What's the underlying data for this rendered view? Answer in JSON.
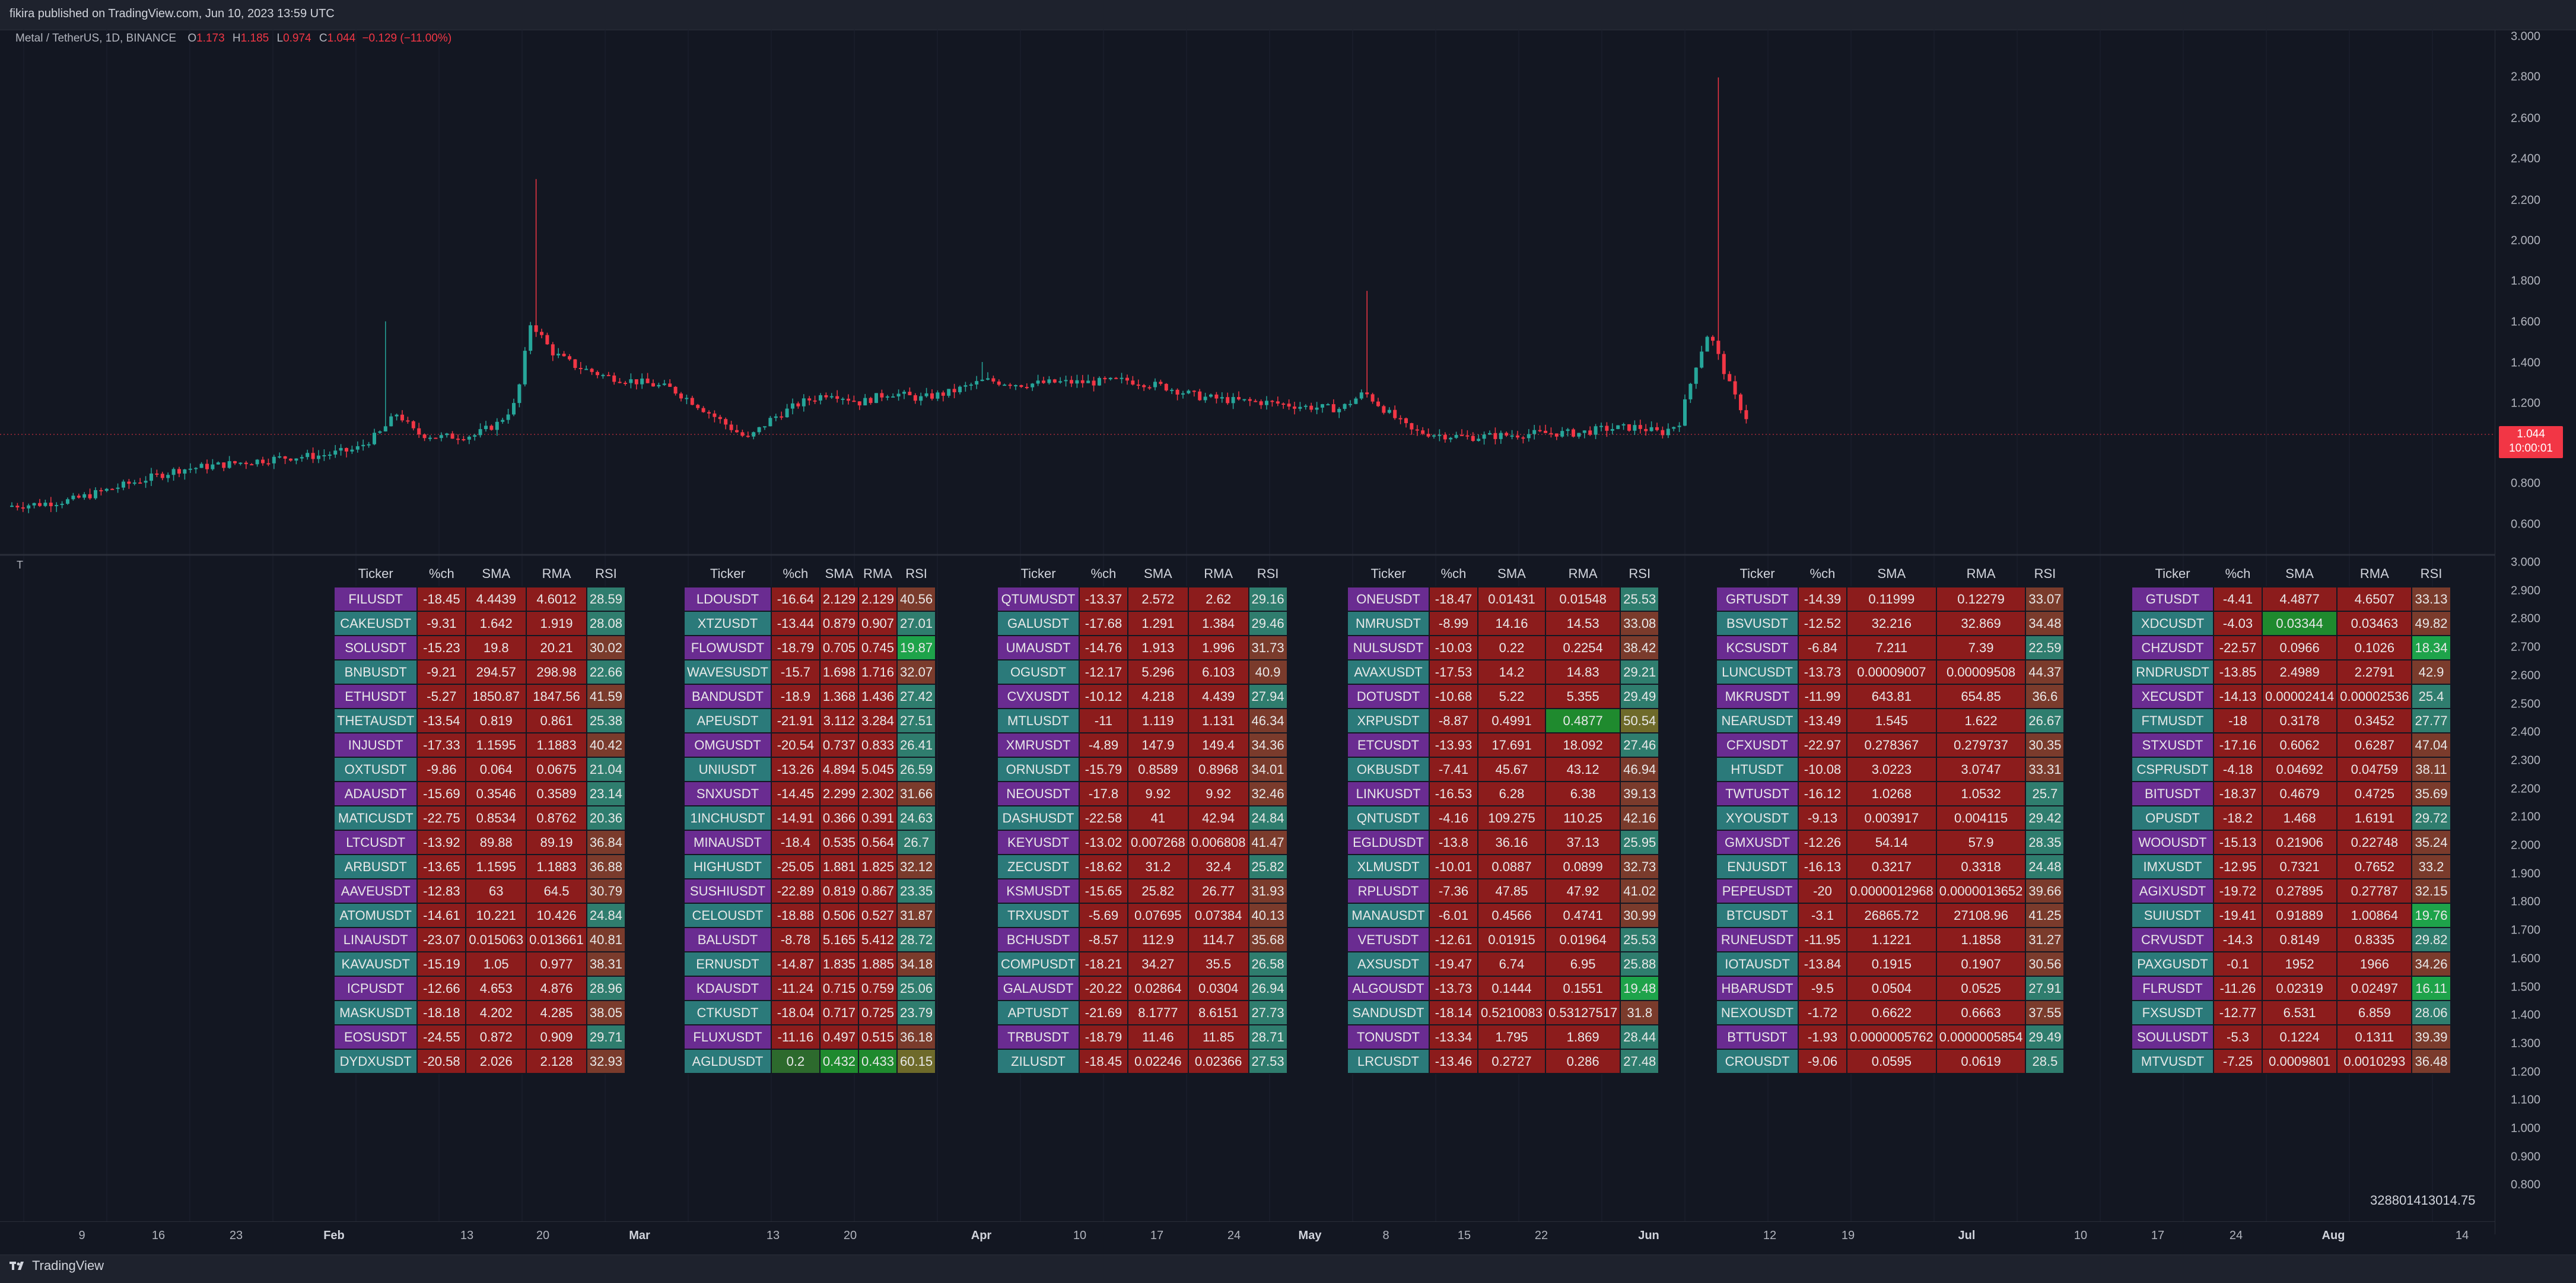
{
  "header": {
    "published": "fikira published on TradingView.com, Jun 10, 2023 13:59 UTC"
  },
  "legend": {
    "symbol": "Metal / TetherUS, 1D, BINANCE",
    "o_label": "O",
    "o": "1.173",
    "h_label": "H",
    "h": "1.185",
    "l_label": "L",
    "l": "0.974",
    "c_label": "C",
    "c": "1.044",
    "change": "−0.129 (−11.00%)"
  },
  "indicator_label": "T",
  "price_axis_main": [
    "3.000",
    "2.800",
    "2.600",
    "2.400",
    "2.200",
    "2.000",
    "1.800",
    "1.600",
    "1.400",
    "1.200",
    "0.800",
    "0.600"
  ],
  "price_axis_ind": [
    "3.000",
    "2.900",
    "2.800",
    "2.700",
    "2.600",
    "2.500",
    "2.400",
    "2.300",
    "2.200",
    "2.100",
    "2.000",
    "1.900",
    "1.800",
    "1.700",
    "1.600",
    "1.500",
    "1.400",
    "1.300",
    "1.200",
    "1.100",
    "1.000",
    "0.900",
    "0.800"
  ],
  "last_price": {
    "price": "1.044",
    "countdown": "10:00:01"
  },
  "time_axis": [
    {
      "label": "9",
      "bold": false
    },
    {
      "label": "16",
      "bold": false
    },
    {
      "label": "23",
      "bold": false
    },
    {
      "label": "Feb",
      "bold": true
    },
    {
      "label": "13",
      "bold": false
    },
    {
      "label": "20",
      "bold": false
    },
    {
      "label": "Mar",
      "bold": true
    },
    {
      "label": "13",
      "bold": false
    },
    {
      "label": "20",
      "bold": false
    },
    {
      "label": "Apr",
      "bold": true
    },
    {
      "label": "10",
      "bold": false
    },
    {
      "label": "17",
      "bold": false
    },
    {
      "label": "24",
      "bold": false
    },
    {
      "label": "May",
      "bold": true
    },
    {
      "label": "8",
      "bold": false
    },
    {
      "label": "15",
      "bold": false
    },
    {
      "label": "22",
      "bold": false
    },
    {
      "label": "Jun",
      "bold": true
    },
    {
      "label": "12",
      "bold": false
    },
    {
      "label": "19",
      "bold": false
    },
    {
      "label": "Jul",
      "bold": true
    },
    {
      "label": "10",
      "bold": false
    },
    {
      "label": "17",
      "bold": false
    },
    {
      "label": "24",
      "bold": false
    },
    {
      "label": "Aug",
      "bold": true
    },
    {
      "label": "14",
      "bold": false
    }
  ],
  "footer_number": "328801413014.75",
  "brand": "TradingView",
  "colors": {
    "up": "#26a69a",
    "down": "#f23645",
    "bg": "#131722"
  },
  "screener": {
    "headers": [
      "Ticker",
      "%ch",
      "SMA",
      "RMA",
      "RSI"
    ],
    "tables": [
      [
        [
          "FILUSDT",
          "-18.45",
          "4.4439",
          "4.6012",
          "28.59"
        ],
        [
          "CAKEUSDT",
          "-9.31",
          "1.642",
          "1.919",
          "28.08"
        ],
        [
          "SOLUSDT",
          "-15.23",
          "19.8",
          "20.21",
          "30.02"
        ],
        [
          "BNBUSDT",
          "-9.21",
          "294.57",
          "298.98",
          "22.66"
        ],
        [
          "ETHUSDT",
          "-5.27",
          "1850.87",
          "1847.56",
          "41.59"
        ],
        [
          "THETAUSDT",
          "-13.54",
          "0.819",
          "0.861",
          "25.38"
        ],
        [
          "INJUSDT",
          "-17.33",
          "1.1595",
          "1.1883",
          "40.42"
        ],
        [
          "OXTUSDT",
          "-9.86",
          "0.064",
          "0.0675",
          "21.04"
        ],
        [
          "ADAUSDT",
          "-15.69",
          "0.3546",
          "0.3589",
          "23.14"
        ],
        [
          "MATICUSDT",
          "-22.75",
          "0.8534",
          "0.8762",
          "20.36"
        ],
        [
          "LTCUSDT",
          "-13.92",
          "89.88",
          "89.19",
          "36.84"
        ],
        [
          "ARBUSDT",
          "-13.65",
          "1.1595",
          "1.1883",
          "36.88"
        ],
        [
          "AAVEUSDT",
          "-12.83",
          "63",
          "64.5",
          "30.79"
        ],
        [
          "ATOMUSDT",
          "-14.61",
          "10.221",
          "10.426",
          "24.84"
        ],
        [
          "LINAUSDT",
          "-23.07",
          "0.015063",
          "0.013661",
          "40.81"
        ],
        [
          "KAVAUSDT",
          "-15.19",
          "1.05",
          "0.977",
          "38.31"
        ],
        [
          "ICPUSDT",
          "-12.66",
          "4.653",
          "4.876",
          "28.96"
        ],
        [
          "MASKUSDT",
          "-18.18",
          "4.202",
          "4.285",
          "38.05"
        ],
        [
          "EOSUSDT",
          "-24.55",
          "0.872",
          "0.909",
          "29.71"
        ],
        [
          "DYDXUSDT",
          "-20.58",
          "2.026",
          "2.128",
          "32.93"
        ]
      ],
      [
        [
          "LDOUSDT",
          "-16.64",
          "2.129",
          "2.129",
          "40.56"
        ],
        [
          "XTZUSDT",
          "-13.44",
          "0.879",
          "0.907",
          "27.01"
        ],
        [
          "FLOWUSDT",
          "-18.79",
          "0.705",
          "0.745",
          "19.87"
        ],
        [
          "WAVESUSDT",
          "-15.7",
          "1.698",
          "1.716",
          "32.07"
        ],
        [
          "BANDUSDT",
          "-18.9",
          "1.368",
          "1.436",
          "27.42"
        ],
        [
          "APEUSDT",
          "-21.91",
          "3.112",
          "3.284",
          "27.51"
        ],
        [
          "OMGUSDT",
          "-20.54",
          "0.737",
          "0.833",
          "26.41"
        ],
        [
          "UNIUSDT",
          "-13.26",
          "4.894",
          "5.045",
          "26.59"
        ],
        [
          "SNXUSDT",
          "-14.45",
          "2.299",
          "2.302",
          "31.66"
        ],
        [
          "1INCHUSDT",
          "-14.91",
          "0.366",
          "0.391",
          "24.63"
        ],
        [
          "MINAUSDT",
          "-18.4",
          "0.535",
          "0.564",
          "26.7"
        ],
        [
          "HIGHUSDT",
          "-25.05",
          "1.881",
          "1.825",
          "32.12"
        ],
        [
          "SUSHIUSDT",
          "-22.89",
          "0.819",
          "0.867",
          "23.35"
        ],
        [
          "CELOUSDT",
          "-18.88",
          "0.506",
          "0.527",
          "31.87"
        ],
        [
          "BALUSDT",
          "-8.78",
          "5.165",
          "5.412",
          "28.72"
        ],
        [
          "ERNUSDT",
          "-14.87",
          "1.835",
          "1.885",
          "34.18"
        ],
        [
          "KDAUSDT",
          "-11.24",
          "0.715",
          "0.759",
          "25.06"
        ],
        [
          "CTKUSDT",
          "-18.04",
          "0.717",
          "0.725",
          "23.79"
        ],
        [
          "FLUXUSDT",
          "-11.16",
          "0.497",
          "0.515",
          "36.18"
        ],
        [
          "AGLDUSDT",
          "0.2",
          "0.432",
          "0.433",
          "60.15"
        ]
      ],
      [
        [
          "QTUMUSDT",
          "-13.37",
          "2.572",
          "2.62",
          "29.16"
        ],
        [
          "GALUSDT",
          "-17.68",
          "1.291",
          "1.384",
          "29.46"
        ],
        [
          "UMAUSDT",
          "-14.76",
          "1.913",
          "1.996",
          "31.73"
        ],
        [
          "OGUSDT",
          "-12.17",
          "5.296",
          "6.103",
          "40.9"
        ],
        [
          "CVXUSDT",
          "-10.12",
          "4.218",
          "4.439",
          "27.94"
        ],
        [
          "MTLUSDT",
          "-11",
          "1.119",
          "1.131",
          "46.34"
        ],
        [
          "XMRUSDT",
          "-4.89",
          "147.9",
          "149.4",
          "34.36"
        ],
        [
          "ORNUSDT",
          "-15.79",
          "0.8589",
          "0.8968",
          "34.01"
        ],
        [
          "NEOUSDT",
          "-17.8",
          "9.92",
          "9.92",
          "32.46"
        ],
        [
          "DASHUSDT",
          "-22.58",
          "41",
          "42.94",
          "24.84"
        ],
        [
          "KEYUSDT",
          "-13.02",
          "0.007268",
          "0.006808",
          "41.47"
        ],
        [
          "ZECUSDT",
          "-18.62",
          "31.2",
          "32.4",
          "25.82"
        ],
        [
          "KSMUSDT",
          "-15.65",
          "25.82",
          "26.77",
          "31.93"
        ],
        [
          "TRXUSDT",
          "-5.69",
          "0.07695",
          "0.07384",
          "40.13"
        ],
        [
          "BCHUSDT",
          "-8.57",
          "112.9",
          "114.7",
          "35.68"
        ],
        [
          "COMPUSDT",
          "-18.21",
          "34.27",
          "35.5",
          "26.58"
        ],
        [
          "GALAUSDT",
          "-20.22",
          "0.02864",
          "0.0304",
          "26.94"
        ],
        [
          "APTUSDT",
          "-21.69",
          "8.1777",
          "8.6151",
          "27.73"
        ],
        [
          "TRBUSDT",
          "-18.79",
          "11.46",
          "11.85",
          "28.71"
        ],
        [
          "ZILUSDT",
          "-18.45",
          "0.02246",
          "0.02366",
          "27.53"
        ]
      ],
      [
        [
          "ONEUSDT",
          "-18.47",
          "0.01431",
          "0.01548",
          "25.53"
        ],
        [
          "NMRUSDT",
          "-8.99",
          "14.16",
          "14.53",
          "33.08"
        ],
        [
          "NULSUSDT",
          "-10.03",
          "0.22",
          "0.2254",
          "38.42"
        ],
        [
          "AVAXUSDT",
          "-17.53",
          "14.2",
          "14.83",
          "29.21"
        ],
        [
          "DOTUSDT",
          "-10.68",
          "5.22",
          "5.355",
          "29.49"
        ],
        [
          "XRPUSDT",
          "-8.87",
          "0.4991",
          "0.4877",
          "50.54"
        ],
        [
          "ETCUSDT",
          "-13.93",
          "17.691",
          "18.092",
          "27.46"
        ],
        [
          "OKBUSDT",
          "-7.41",
          "45.67",
          "43.12",
          "46.94"
        ],
        [
          "LINKUSDT",
          "-16.53",
          "6.28",
          "6.38",
          "39.13"
        ],
        [
          "QNTUSDT",
          "-4.16",
          "109.275",
          "110.25",
          "42.16"
        ],
        [
          "EGLDUSDT",
          "-13.8",
          "36.16",
          "37.13",
          "25.95"
        ],
        [
          "XLMUSDT",
          "-10.01",
          "0.0887",
          "0.0899",
          "32.73"
        ],
        [
          "RPLUSDT",
          "-7.36",
          "47.85",
          "47.92",
          "41.02"
        ],
        [
          "MANAUSDT",
          "-6.01",
          "0.4566",
          "0.4741",
          "30.99"
        ],
        [
          "VETUSDT",
          "-12.61",
          "0.01915",
          "0.01964",
          "25.53"
        ],
        [
          "AXSUSDT",
          "-19.47",
          "6.74",
          "6.95",
          "25.88"
        ],
        [
          "ALGOUSDT",
          "-13.73",
          "0.1444",
          "0.1551",
          "19.48"
        ],
        [
          "SANDUSDT",
          "-18.14",
          "0.5210083",
          "0.53127517",
          "31.8"
        ],
        [
          "TONUSDT",
          "-13.34",
          "1.795",
          "1.869",
          "28.44"
        ],
        [
          "LRCUSDT",
          "-13.46",
          "0.2727",
          "0.286",
          "27.48"
        ]
      ],
      [
        [
          "GRTUSDT",
          "-14.39",
          "0.11999",
          "0.12279",
          "33.07"
        ],
        [
          "BSVUSDT",
          "-12.52",
          "32.216",
          "32.869",
          "34.48"
        ],
        [
          "KCSUSDT",
          "-6.84",
          "7.211",
          "7.39",
          "22.59"
        ],
        [
          "LUNCUSDT",
          "-13.73",
          "0.00009007",
          "0.00009508",
          "44.37"
        ],
        [
          "MKRUSDT",
          "-11.99",
          "643.81",
          "654.85",
          "36.6"
        ],
        [
          "NEARUSDT",
          "-13.49",
          "1.545",
          "1.622",
          "26.67"
        ],
        [
          "CFXUSDT",
          "-22.97",
          "0.278367",
          "0.279737",
          "30.35"
        ],
        [
          "HTUSDT",
          "-10.08",
          "3.0223",
          "3.0747",
          "33.31"
        ],
        [
          "TWTUSDT",
          "-16.12",
          "1.0268",
          "1.0532",
          "25.7"
        ],
        [
          "XYOUSDT",
          "-9.13",
          "0.003917",
          "0.004115",
          "29.42"
        ],
        [
          "GMXUSDT",
          "-12.26",
          "54.14",
          "57.9",
          "28.35"
        ],
        [
          "ENJUSDT",
          "-16.13",
          "0.3217",
          "0.3318",
          "24.48"
        ],
        [
          "PEPEUSDT",
          "-20",
          "0.0000012968",
          "0.0000013652",
          "39.66"
        ],
        [
          "BTCUSDT",
          "-3.1",
          "26865.72",
          "27108.96",
          "41.25"
        ],
        [
          "RUNEUSDT",
          "-11.95",
          "1.1221",
          "1.1858",
          "31.27"
        ],
        [
          "IOTAUSDT",
          "-13.84",
          "0.1915",
          "0.1907",
          "30.56"
        ],
        [
          "HBARUSDT",
          "-9.5",
          "0.0504",
          "0.0525",
          "27.91"
        ],
        [
          "NEXOUSDT",
          "-1.72",
          "0.6622",
          "0.6663",
          "37.55"
        ],
        [
          "BTTUSDT",
          "-1.93",
          "0.0000005762",
          "0.0000005854",
          "29.49"
        ],
        [
          "CROUSDT",
          "-9.06",
          "0.0595",
          "0.0619",
          "28.5"
        ]
      ],
      [
        [
          "GTUSDT",
          "-4.41",
          "4.4877",
          "4.6507",
          "33.13"
        ],
        [
          "XDCUSDT",
          "-4.03",
          "0.03344",
          "0.03463",
          "49.82"
        ],
        [
          "CHZUSDT",
          "-22.57",
          "0.0966",
          "0.1026",
          "18.34"
        ],
        [
          "RNDRUSDT",
          "-13.85",
          "2.4989",
          "2.2791",
          "42.9"
        ],
        [
          "XECUSDT",
          "-14.13",
          "0.00002414",
          "0.00002536",
          "25.4"
        ],
        [
          "FTMUSDT",
          "-18",
          "0.3178",
          "0.3452",
          "27.77"
        ],
        [
          "STXUSDT",
          "-17.16",
          "0.6062",
          "0.6287",
          "47.04"
        ],
        [
          "CSPRUSDT",
          "-4.18",
          "0.04692",
          "0.04759",
          "38.11"
        ],
        [
          "BITUSDT",
          "-18.37",
          "0.4679",
          "0.4725",
          "35.69"
        ],
        [
          "OPUSDT",
          "-18.2",
          "1.468",
          "1.6191",
          "29.72"
        ],
        [
          "WOOUSDT",
          "-15.13",
          "0.21906",
          "0.22748",
          "35.24"
        ],
        [
          "IMXUSDT",
          "-12.95",
          "0.7321",
          "0.7652",
          "33.2"
        ],
        [
          "AGIXUSDT",
          "-19.72",
          "0.27895",
          "0.27787",
          "32.15"
        ],
        [
          "SUIUSDT",
          "-19.41",
          "0.91889",
          "1.00864",
          "19.76"
        ],
        [
          "CRVUSDT",
          "-14.3",
          "0.8149",
          "0.8335",
          "29.82"
        ],
        [
          "PAXGUSDT",
          "-0.1",
          "1952",
          "1966",
          "34.26"
        ],
        [
          "FLRUSDT",
          "-11.26",
          "0.02319",
          "0.02497",
          "16.11"
        ],
        [
          "FXSUSDT",
          "-12.77",
          "6.531",
          "6.859",
          "28.06"
        ],
        [
          "SOULUSDT",
          "-5.3",
          "0.1224",
          "0.1311",
          "39.39"
        ],
        [
          "MTVUSDT",
          "-7.25",
          "0.0009801",
          "0.0010293",
          "36.48"
        ]
      ]
    ]
  }
}
